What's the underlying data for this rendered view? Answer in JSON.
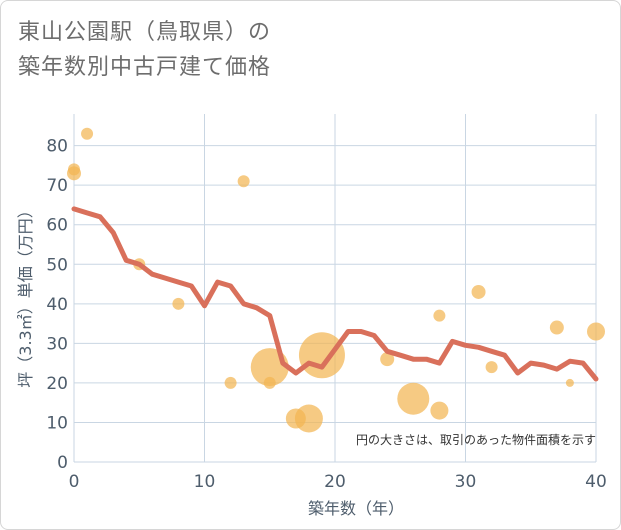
{
  "title": {
    "line1": "東山公園駅（鳥取県）の",
    "line2": "築年数別中古戸建て価格"
  },
  "note": "円の大きさは、取引のあった物件面積を示す",
  "colors": {
    "line": "#d9705b",
    "bubble": "#f2b553",
    "grid": "#c9d6e3",
    "axis_text": "#4e5d6c"
  },
  "chart_data": {
    "type": "scatter",
    "xlabel": "築年数（年）",
    "ylabel": "坪（3.3㎡）単価（万円）",
    "xlim": [
      0,
      40
    ],
    "ylim": [
      0,
      88
    ],
    "xticks": [
      0,
      10,
      20,
      30,
      40
    ],
    "yticks": [
      0,
      10,
      20,
      30,
      40,
      50,
      60,
      70,
      80
    ],
    "grid": true,
    "line_series": {
      "x": [
        0,
        1,
        2,
        3,
        4,
        5,
        6,
        7,
        8,
        9,
        10,
        11,
        12,
        13,
        14,
        15,
        16,
        17,
        18,
        19,
        20,
        21,
        22,
        23,
        24,
        25,
        26,
        27,
        28,
        29,
        30,
        31,
        32,
        33,
        34,
        35,
        36,
        37,
        38,
        39,
        40
      ],
      "y": [
        64,
        63,
        62,
        58,
        51,
        50,
        47.5,
        46.5,
        45.5,
        44.5,
        39.5,
        45.5,
        44.5,
        40,
        39,
        37,
        25,
        22.5,
        25,
        24,
        28.5,
        33,
        33,
        32,
        28,
        27,
        26,
        26,
        25,
        30.5,
        29.5,
        29,
        28,
        27,
        22.5,
        25,
        24.5,
        23.5,
        25.5,
        25,
        21
      ]
    },
    "bubbles": [
      {
        "x": 0,
        "y": 73,
        "size": 7
      },
      {
        "x": 0,
        "y": 74,
        "size": 6
      },
      {
        "x": 1,
        "y": 83,
        "size": 6
      },
      {
        "x": 5,
        "y": 50,
        "size": 6
      },
      {
        "x": 8,
        "y": 40,
        "size": 6
      },
      {
        "x": 12,
        "y": 20,
        "size": 6
      },
      {
        "x": 13,
        "y": 71,
        "size": 6
      },
      {
        "x": 15,
        "y": 24,
        "size": 19
      },
      {
        "x": 15,
        "y": 20,
        "size": 6
      },
      {
        "x": 17,
        "y": 11,
        "size": 10
      },
      {
        "x": 18,
        "y": 11,
        "size": 14
      },
      {
        "x": 19,
        "y": 27,
        "size": 23
      },
      {
        "x": 24,
        "y": 26,
        "size": 7
      },
      {
        "x": 26,
        "y": 16,
        "size": 16
      },
      {
        "x": 28,
        "y": 37,
        "size": 6
      },
      {
        "x": 28,
        "y": 13,
        "size": 9
      },
      {
        "x": 31,
        "y": 43,
        "size": 7
      },
      {
        "x": 32,
        "y": 24,
        "size": 6
      },
      {
        "x": 37,
        "y": 34,
        "size": 7
      },
      {
        "x": 38,
        "y": 20,
        "size": 4
      },
      {
        "x": 40,
        "y": 33,
        "size": 9
      }
    ]
  }
}
